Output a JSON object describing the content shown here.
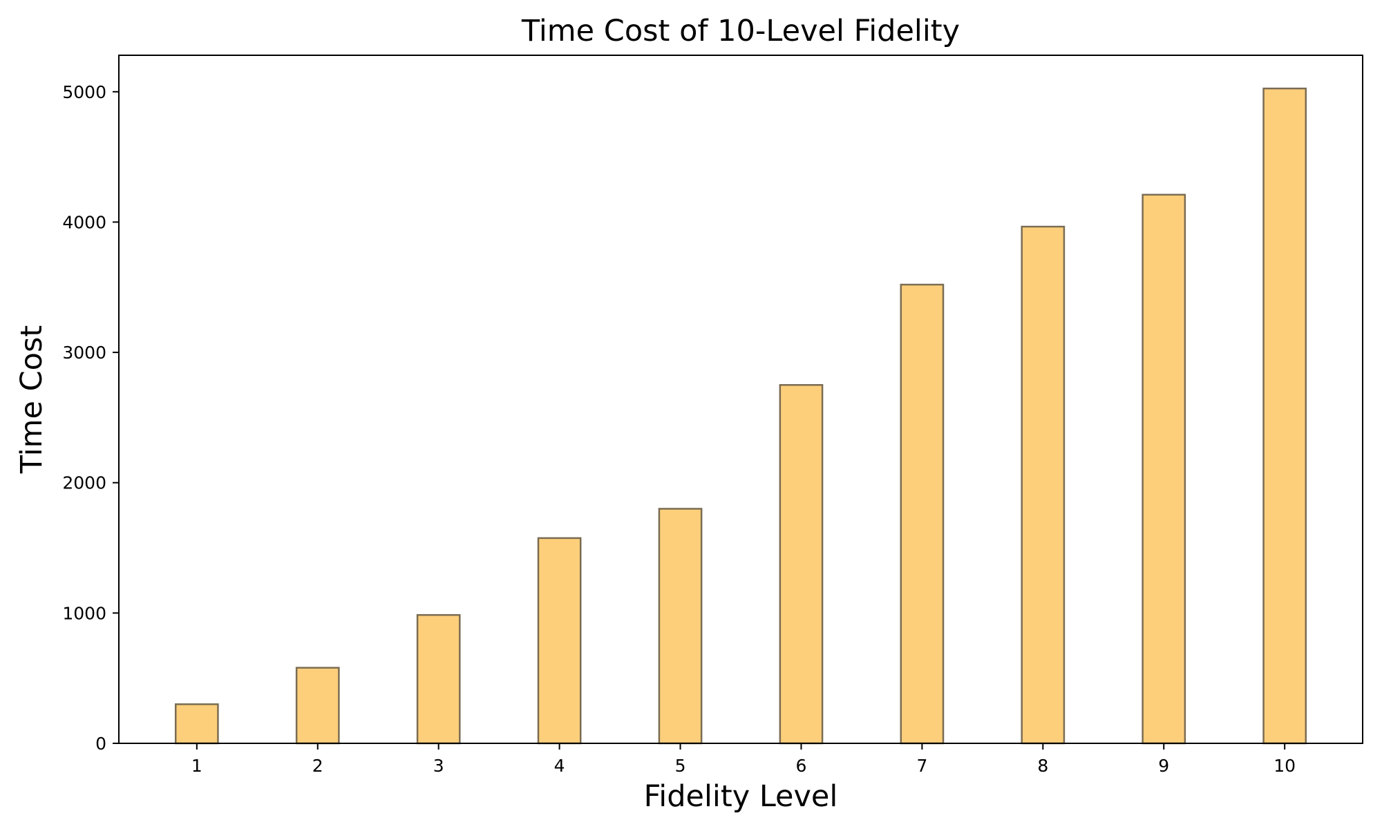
{
  "chart_data": {
    "type": "bar",
    "title": "Time Cost of 10-Level Fidelity",
    "xlabel": "Fidelity Level",
    "ylabel": "Time Cost",
    "categories": [
      "1",
      "2",
      "3",
      "4",
      "5",
      "6",
      "7",
      "8",
      "9",
      "10"
    ],
    "values": [
      300,
      580,
      985,
      1575,
      1800,
      2750,
      3520,
      3965,
      4210,
      5025
    ],
    "ylim": [
      0,
      5280
    ],
    "yticks": [
      0,
      1000,
      2000,
      3000,
      4000,
      5000
    ],
    "grid": false,
    "legend": false,
    "colors": {
      "bar_fill": "#fecf7b",
      "bar_edge": "#7a6c52",
      "axes": "#000000"
    }
  }
}
